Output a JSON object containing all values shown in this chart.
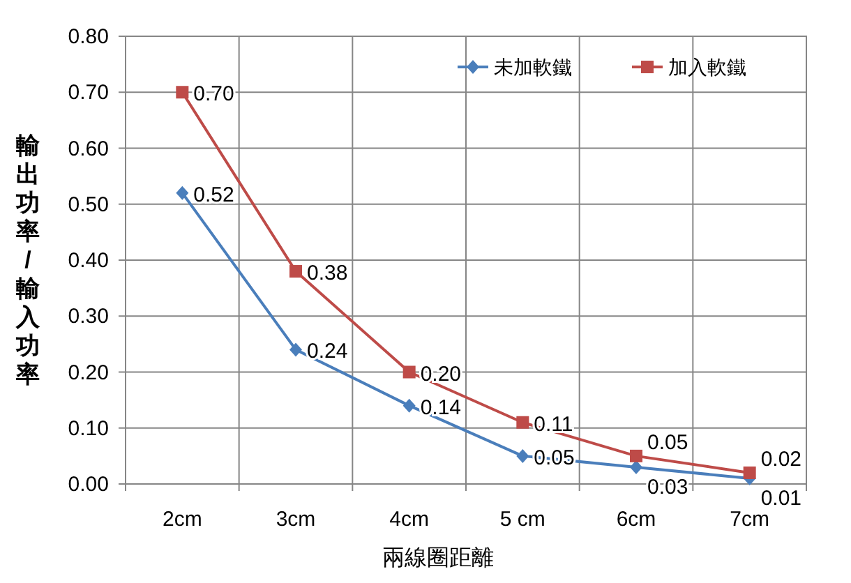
{
  "chart_data": {
    "type": "line",
    "xlabel": "兩線圈距離",
    "ylabel": "輸出功率/輸入功率",
    "categories": [
      "2cm",
      "3cm",
      "4cm",
      "5 cm",
      "6cm",
      "7cm"
    ],
    "series": [
      {
        "name": "未加軟鐵",
        "color": "#4a7ebb",
        "marker": "diamond",
        "values": [
          0.52,
          0.24,
          0.14,
          0.05,
          0.03,
          0.01
        ],
        "value_labels": [
          "0.52",
          "0.24",
          "0.14",
          "0.05",
          "0.03",
          "0.01"
        ]
      },
      {
        "name": "加入軟鐵",
        "color": "#be4b48",
        "marker": "square",
        "values": [
          0.7,
          0.38,
          0.2,
          0.11,
          0.05,
          0.02
        ],
        "value_labels": [
          "0.70",
          "0.38",
          "0.20",
          "0.11",
          "0.05",
          "0.02"
        ]
      }
    ],
    "ylim": [
      0,
      0.8
    ],
    "yticks": [
      {
        "value": 0,
        "label": "0.00"
      },
      {
        "value": 0.1,
        "label": "0.10"
      },
      {
        "value": 0.2,
        "label": "0.20"
      },
      {
        "value": 0.3,
        "label": "0.30"
      },
      {
        "value": 0.4,
        "label": "0.40"
      },
      {
        "value": 0.5,
        "label": "0.50"
      },
      {
        "value": 0.6,
        "label": "0.60"
      },
      {
        "value": 0.7,
        "label": "0.70"
      },
      {
        "value": 0.8,
        "label": "0.80"
      }
    ],
    "grid": true,
    "legend": "top right",
    "line_style": "solid"
  }
}
